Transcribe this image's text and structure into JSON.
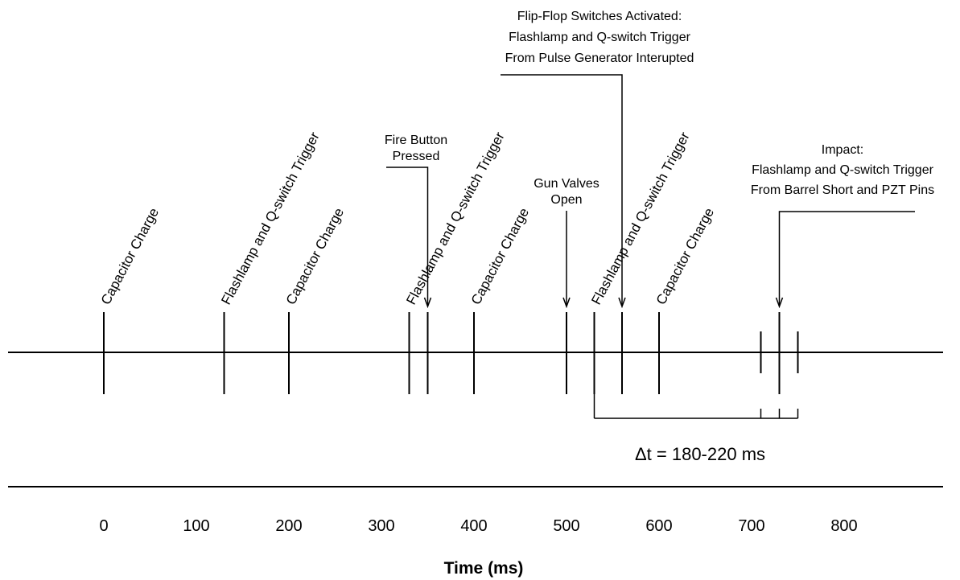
{
  "events": [
    {
      "t": 0,
      "label": "Capacitor Charge"
    },
    {
      "t": 130,
      "label": "Flashlamp and Q-switch Trigger"
    },
    {
      "t": 200,
      "label": "Capacitor Charge"
    },
    {
      "t": 330,
      "label": "Flashlamp and Q-switch Trigger"
    },
    {
      "t": 400,
      "label": "Capacitor Charge"
    },
    {
      "t": 530,
      "label": "Flashlamp and Q-switch Trigger"
    },
    {
      "t": 600,
      "label": "Capacitor Charge"
    }
  ],
  "extra_marks_ms": [
    710,
    750
  ],
  "annotations": {
    "fire": {
      "t": 350,
      "lines": [
        "Fire Button",
        "Pressed"
      ]
    },
    "gun": {
      "t": 500,
      "lines": [
        "Gun Valves",
        "Open"
      ]
    },
    "flipflop": {
      "t": 560,
      "lines": [
        "Flip-Flop Switches Activated:",
        "Flashlamp and Q-switch Trigger",
        "From Pulse Generator Interupted"
      ]
    },
    "impact": {
      "t": 730,
      "lines": [
        "Impact:",
        "Flashlamp and Q-switch Trigger",
        "From Barrel Short and PZT Pins"
      ]
    }
  },
  "bracket_ms": {
    "start": 530,
    "marks": [
      710,
      730,
      750
    ]
  },
  "delta_t_label": "Δt = 180-220 ms",
  "axis": {
    "ticks": [
      0,
      100,
      200,
      300,
      400,
      500,
      600,
      700,
      800
    ],
    "title": "Time (ms)"
  }
}
